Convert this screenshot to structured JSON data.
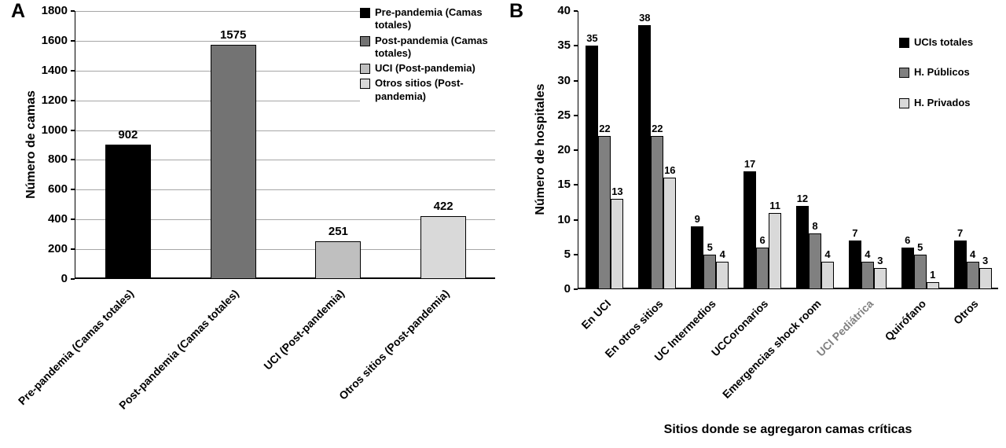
{
  "figure": {
    "background": "#ffffff"
  },
  "chart_data": [
    {
      "id": "A",
      "panel_label": "A",
      "type": "bar",
      "title": "",
      "ylabel": "Número de camas",
      "xlabel": "",
      "ylim": [
        0,
        1800
      ],
      "yticks": [
        0,
        200,
        400,
        600,
        800,
        1000,
        1200,
        1400,
        1600,
        1800
      ],
      "grid": true,
      "categories": [
        "Pre-pandemia (Camas totales)",
        "Post-pandemia (Camas totales)",
        "UCI (Post-pandemia)",
        "Otros sitios (Post-pandemia)"
      ],
      "values": [
        902,
        1575,
        251,
        422
      ],
      "bar_colors": [
        "#000000",
        "#737373",
        "#bfbfbf",
        "#d9d9d9"
      ],
      "legend_position": "top-right-inside",
      "legend": [
        {
          "label": "Pre-pandemia (Camas totales)",
          "color": "#000000"
        },
        {
          "label": "Post-pandemia (Camas totales)",
          "color": "#737373"
        },
        {
          "label": "UCI (Post-pandemia)",
          "color": "#bfbfbf"
        },
        {
          "label": "Otros sitios (Post-pandemia)",
          "color": "#d9d9d9"
        }
      ]
    },
    {
      "id": "B",
      "panel_label": "B",
      "type": "bar",
      "title": "",
      "ylabel": "Número de hospitales",
      "xlabel": "Sitios donde se agregaron camas críticas",
      "ylim": [
        0,
        40
      ],
      "yticks": [
        0,
        5,
        10,
        15,
        20,
        25,
        30,
        35,
        40
      ],
      "grid": false,
      "categories": [
        "En UCI",
        "En otros sitios",
        "UC Intermedios",
        "UCCoronarios",
        "Emergencias shock room",
        "UCI Pediátrica",
        "Quirófano",
        "Otros"
      ],
      "muted_categories": [
        "UCI Pediátrica"
      ],
      "muted_label_color": "#808080",
      "series": [
        {
          "name": "UCIs totales",
          "color": "#000000",
          "values": [
            35,
            38,
            9,
            17,
            12,
            7,
            6,
            7
          ]
        },
        {
          "name": "H. Públicos",
          "color": "#808080",
          "values": [
            22,
            22,
            5,
            6,
            8,
            4,
            5,
            4
          ]
        },
        {
          "name": "H. Privados",
          "color": "#d9d9d9",
          "values": [
            13,
            16,
            4,
            11,
            4,
            3,
            1,
            3
          ]
        }
      ],
      "legend_position": "right-inside"
    }
  ]
}
